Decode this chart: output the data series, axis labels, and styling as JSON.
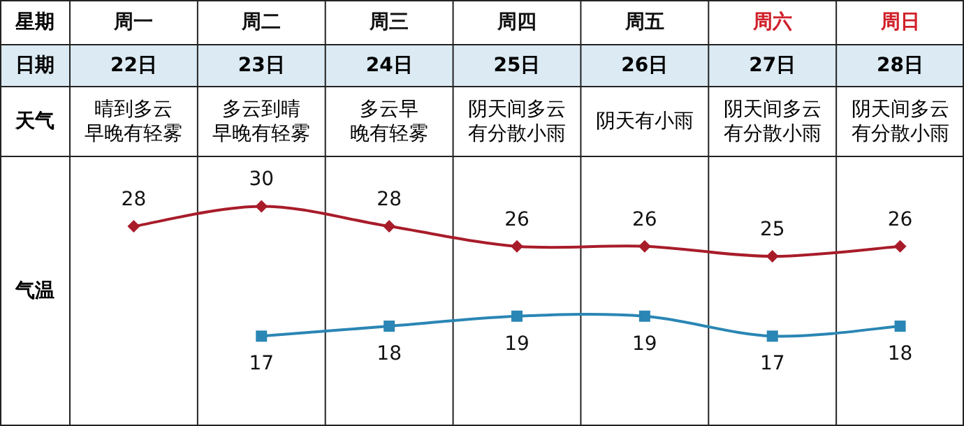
{
  "chart_data": {
    "type": "line",
    "xlabel": "星期",
    "ylabel": "气温",
    "categories": [
      "周一",
      "周二",
      "周三",
      "周四",
      "周五",
      "周六",
      "周日"
    ],
    "series": [
      {
        "color": "#a81c2a",
        "marker": "diamond",
        "values": [
          28,
          30,
          28,
          26,
          26,
          25,
          26
        ]
      },
      {
        "color": "#2a86b4",
        "marker": "square",
        "values": [
          null,
          17,
          18,
          19,
          19,
          17,
          18
        ]
      }
    ],
    "annotations": [
      "日期",
      "22日",
      "23日",
      "24日",
      "25日",
      "26日",
      "27日",
      "28日",
      "天气",
      "晴到多云早晚有轻雾",
      "多云到晴早晚有轻雾",
      "多云早晚有轻雾",
      "阴天间多云有分散小雨",
      "阴天有小雨",
      "阴天间多云有分散小雨",
      "阴天间多云有分散小雨"
    ],
    "ylim": [
      8,
      35
    ],
    "data_labels": true,
    "line_style": "solid",
    "grid": "x"
  }
}
